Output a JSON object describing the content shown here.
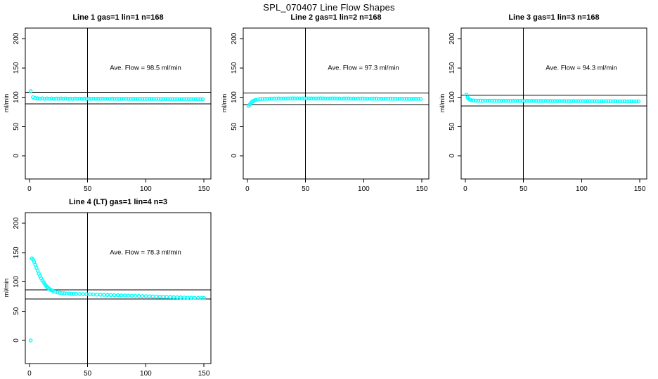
{
  "page_title": "SPL_070407  Line Flow Shapes",
  "marker_color": "#00FFFF",
  "line_color": "#000000",
  "chart_data": [
    {
      "type": "scatter",
      "title": "Line 1 gas=1 lin=1 n=168",
      "ylabel": "ml/min",
      "annotation": {
        "text": "Ave. Flow =  98.5  ml/min",
        "x": 100,
        "y": 150
      },
      "ave_flow": 98.5,
      "x_ticks": [
        0,
        50,
        100,
        150
      ],
      "y_ticks": [
        0,
        50,
        100,
        150,
        200
      ],
      "xlim": [
        -3.6,
        156
      ],
      "ylim": [
        -39.5,
        218
      ],
      "grid": false,
      "ref_h": [
        108.4,
        88.7
      ],
      "ref_v": [
        50
      ],
      "points": [
        [
          1,
          110.3
        ],
        [
          3,
          100.0
        ],
        [
          5,
          98.4
        ],
        [
          7,
          98.1
        ],
        [
          9,
          97.5
        ],
        [
          11,
          98.0
        ],
        [
          13,
          97.3
        ],
        [
          15,
          97.8
        ],
        [
          17,
          97.4
        ],
        [
          19,
          97.9
        ],
        [
          21,
          97.3
        ],
        [
          23,
          97.7
        ],
        [
          25,
          97.5
        ],
        [
          27,
          97.9
        ],
        [
          29,
          97.4
        ],
        [
          31,
          97.8
        ],
        [
          33,
          97.3
        ],
        [
          35,
          97.6
        ],
        [
          37,
          97.2
        ],
        [
          39,
          97.7
        ],
        [
          41,
          97.3
        ],
        [
          43,
          97.6
        ],
        [
          45,
          97.2
        ],
        [
          47,
          97.7
        ],
        [
          49,
          97.3
        ],
        [
          51,
          97.5
        ],
        [
          53,
          97.1
        ],
        [
          55,
          97.6
        ],
        [
          57,
          97.2
        ],
        [
          59,
          97.5
        ],
        [
          61,
          97.1
        ],
        [
          63,
          97.5
        ],
        [
          65,
          97.1
        ],
        [
          67,
          97.4
        ],
        [
          69,
          97.0
        ],
        [
          71,
          97.5
        ],
        [
          73,
          97.1
        ],
        [
          75,
          97.4
        ],
        [
          77,
          97.0
        ],
        [
          79,
          97.3
        ],
        [
          81,
          97.1
        ],
        [
          83,
          97.4
        ],
        [
          85,
          97.0
        ],
        [
          87,
          97.3
        ],
        [
          89,
          96.9
        ],
        [
          91,
          97.3
        ],
        [
          93,
          96.9
        ],
        [
          95,
          97.2
        ],
        [
          97,
          96.9
        ],
        [
          99,
          97.2
        ],
        [
          101,
          96.8
        ],
        [
          103,
          97.2
        ],
        [
          105,
          96.8
        ],
        [
          107,
          97.1
        ],
        [
          109,
          96.8
        ],
        [
          111,
          97.1
        ],
        [
          113,
          96.7
        ],
        [
          115,
          97.1
        ],
        [
          117,
          96.7
        ],
        [
          119,
          97.0
        ],
        [
          121,
          96.7
        ],
        [
          123,
          97.0
        ],
        [
          125,
          96.6
        ],
        [
          127,
          97.0
        ],
        [
          129,
          96.6
        ],
        [
          131,
          96.9
        ],
        [
          133,
          96.6
        ],
        [
          135,
          96.9
        ],
        [
          137,
          96.5
        ],
        [
          139,
          96.9
        ],
        [
          141,
          96.5
        ],
        [
          143,
          96.8
        ],
        [
          145,
          96.5
        ],
        [
          147,
          96.8
        ],
        [
          149,
          96.4
        ]
      ]
    },
    {
      "type": "scatter",
      "title": "Line 2 gas=1 lin=2 n=168",
      "ylabel": "ml/min",
      "annotation": {
        "text": "Ave. Flow =  97.3  ml/min",
        "x": 100,
        "y": 150
      },
      "ave_flow": 97.3,
      "x_ticks": [
        0,
        50,
        100,
        150
      ],
      "y_ticks": [
        0,
        50,
        100,
        150,
        200
      ],
      "xlim": [
        -3.6,
        156
      ],
      "ylim": [
        -39.5,
        218
      ],
      "grid": false,
      "ref_h": [
        107.0,
        87.6
      ],
      "ref_v": [
        50
      ],
      "points": [
        [
          1,
          85.0
        ],
        [
          2,
          87.5
        ],
        [
          3,
          90.0
        ],
        [
          4,
          92.0
        ],
        [
          5,
          93.5
        ],
        [
          6,
          94.5
        ],
        [
          7,
          95.3
        ],
        [
          9,
          96.2
        ],
        [
          11,
          96.8
        ],
        [
          13,
          97.1
        ],
        [
          15,
          97.3
        ],
        [
          17,
          97.4
        ],
        [
          19,
          97.6
        ],
        [
          21,
          97.5
        ],
        [
          23,
          97.7
        ],
        [
          25,
          97.6
        ],
        [
          27,
          97.8
        ],
        [
          29,
          97.6
        ],
        [
          31,
          97.9
        ],
        [
          33,
          97.7
        ],
        [
          35,
          97.9
        ],
        [
          37,
          97.8
        ],
        [
          39,
          98.0
        ],
        [
          41,
          97.8
        ],
        [
          43,
          98.0
        ],
        [
          45,
          97.9
        ],
        [
          47,
          98.0
        ],
        [
          49,
          97.8
        ],
        [
          51,
          98.0
        ],
        [
          53,
          97.9
        ],
        [
          55,
          98.0
        ],
        [
          57,
          97.8
        ],
        [
          59,
          97.9
        ],
        [
          61,
          97.8
        ],
        [
          63,
          98.0
        ],
        [
          65,
          97.8
        ],
        [
          67,
          97.9
        ],
        [
          69,
          97.7
        ],
        [
          71,
          97.9
        ],
        [
          73,
          97.8
        ],
        [
          75,
          97.9
        ],
        [
          77,
          97.7
        ],
        [
          79,
          97.8
        ],
        [
          81,
          97.6
        ],
        [
          83,
          97.8
        ],
        [
          85,
          97.7
        ],
        [
          87,
          97.8
        ],
        [
          89,
          97.6
        ],
        [
          91,
          97.7
        ],
        [
          93,
          97.5
        ],
        [
          95,
          97.7
        ],
        [
          97,
          97.6
        ],
        [
          99,
          97.7
        ],
        [
          101,
          97.5
        ],
        [
          103,
          97.6
        ],
        [
          105,
          97.4
        ],
        [
          107,
          97.6
        ],
        [
          109,
          97.5
        ],
        [
          111,
          97.6
        ],
        [
          113,
          97.4
        ],
        [
          115,
          97.5
        ],
        [
          117,
          97.3
        ],
        [
          119,
          97.5
        ],
        [
          121,
          97.4
        ],
        [
          123,
          97.5
        ],
        [
          125,
          97.3
        ],
        [
          127,
          97.4
        ],
        [
          129,
          97.2
        ],
        [
          131,
          97.4
        ],
        [
          133,
          97.3
        ],
        [
          135,
          97.4
        ],
        [
          137,
          97.2
        ],
        [
          139,
          97.3
        ],
        [
          141,
          97.1
        ],
        [
          143,
          97.3
        ],
        [
          145,
          97.2
        ],
        [
          147,
          97.3
        ],
        [
          149,
          97.1
        ]
      ]
    },
    {
      "type": "scatter",
      "title": "Line 3 gas=1 lin=3 n=168",
      "ylabel": "ml/min",
      "annotation": {
        "text": "Ave. Flow =  94.3  ml/min",
        "x": 100,
        "y": 150
      },
      "ave_flow": 94.3,
      "x_ticks": [
        0,
        50,
        100,
        150
      ],
      "y_ticks": [
        0,
        50,
        100,
        150,
        200
      ],
      "xlim": [
        -3.6,
        156
      ],
      "ylim": [
        -39.5,
        218
      ],
      "grid": false,
      "ref_h": [
        103.7,
        84.9
      ],
      "ref_v": [
        50
      ],
      "points": [
        [
          1,
          104.5
        ],
        [
          2,
          99.5
        ],
        [
          3,
          97.0
        ],
        [
          4,
          95.8
        ],
        [
          5,
          95.0
        ],
        [
          7,
          94.4
        ],
        [
          9,
          94.2
        ],
        [
          11,
          94.0
        ],
        [
          13,
          94.2
        ],
        [
          15,
          93.9
        ],
        [
          17,
          94.1
        ],
        [
          19,
          93.8
        ],
        [
          21,
          94.1
        ],
        [
          23,
          93.9
        ],
        [
          25,
          94.0
        ],
        [
          27,
          93.8
        ],
        [
          29,
          94.0
        ],
        [
          31,
          93.7
        ],
        [
          33,
          94.0
        ],
        [
          35,
          93.8
        ],
        [
          37,
          93.9
        ],
        [
          39,
          93.7
        ],
        [
          41,
          93.9
        ],
        [
          43,
          93.6
        ],
        [
          45,
          93.9
        ],
        [
          47,
          93.7
        ],
        [
          49,
          93.8
        ],
        [
          51,
          93.6
        ],
        [
          53,
          93.8
        ],
        [
          55,
          93.5
        ],
        [
          57,
          93.8
        ],
        [
          59,
          93.6
        ],
        [
          61,
          93.7
        ],
        [
          63,
          93.5
        ],
        [
          65,
          93.7
        ],
        [
          67,
          93.4
        ],
        [
          69,
          93.7
        ],
        [
          71,
          93.5
        ],
        [
          73,
          93.6
        ],
        [
          75,
          93.4
        ],
        [
          77,
          93.6
        ],
        [
          79,
          93.3
        ],
        [
          81,
          93.6
        ],
        [
          83,
          93.4
        ],
        [
          85,
          93.5
        ],
        [
          87,
          93.3
        ],
        [
          89,
          93.5
        ],
        [
          91,
          93.2
        ],
        [
          93,
          93.5
        ],
        [
          95,
          93.3
        ],
        [
          97,
          93.4
        ],
        [
          99,
          93.2
        ],
        [
          101,
          93.4
        ],
        [
          103,
          93.1
        ],
        [
          105,
          93.4
        ],
        [
          107,
          93.2
        ],
        [
          109,
          93.3
        ],
        [
          111,
          93.1
        ],
        [
          113,
          93.3
        ],
        [
          115,
          93.0
        ],
        [
          117,
          93.3
        ],
        [
          119,
          93.1
        ],
        [
          121,
          93.2
        ],
        [
          123,
          93.0
        ],
        [
          125,
          93.2
        ],
        [
          127,
          92.9
        ],
        [
          129,
          93.2
        ],
        [
          131,
          93.0
        ],
        [
          133,
          93.1
        ],
        [
          135,
          92.9
        ],
        [
          137,
          93.1
        ],
        [
          139,
          92.8
        ],
        [
          141,
          93.1
        ],
        [
          143,
          92.9
        ],
        [
          145,
          93.0
        ],
        [
          147,
          92.8
        ],
        [
          149,
          93.0
        ]
      ]
    },
    {
      "type": "scatter",
      "title": "Line 4 (LT) gas=1 lin=4 n=3",
      "ylabel": "ml/min",
      "annotation": {
        "text": "Ave. Flow =  78.3  ml/min",
        "x": 100,
        "y": 150
      },
      "ave_flow": 78.3,
      "x_ticks": [
        0,
        50,
        100,
        150
      ],
      "y_ticks": [
        0,
        50,
        100,
        150,
        200
      ],
      "xlim": [
        -3.6,
        156
      ],
      "ylim": [
        -39.5,
        218
      ],
      "grid": false,
      "ref_h": [
        86.1,
        70.5
      ],
      "ref_v": [
        50
      ],
      "points": [
        [
          1,
          0
        ],
        [
          2,
          140
        ],
        [
          3,
          138
        ],
        [
          4,
          134
        ],
        [
          5,
          129
        ],
        [
          6,
          124
        ],
        [
          7,
          119
        ],
        [
          8,
          114
        ],
        [
          9,
          110
        ],
        [
          10,
          106
        ],
        [
          11,
          102.5
        ],
        [
          12,
          99.5
        ],
        [
          13,
          96.5
        ],
        [
          14,
          94
        ],
        [
          15,
          91.5
        ],
        [
          16,
          89.5
        ],
        [
          17,
          88
        ],
        [
          18,
          86.5
        ],
        [
          19,
          85.5
        ],
        [
          20,
          84.5
        ],
        [
          22,
          83
        ],
        [
          24,
          82
        ],
        [
          26,
          81.3
        ],
        [
          28,
          80.8
        ],
        [
          30,
          80.4
        ],
        [
          32,
          80.1
        ],
        [
          34,
          79.9
        ],
        [
          36,
          79.7
        ],
        [
          38,
          79.5
        ],
        [
          40,
          79.4
        ],
        [
          43,
          79.2
        ],
        [
          46,
          79.0
        ],
        [
          49,
          78.8
        ],
        [
          52,
          78.6
        ],
        [
          55,
          78.4
        ],
        [
          58,
          78.2
        ],
        [
          61,
          78.0
        ],
        [
          64,
          77.8
        ],
        [
          67,
          77.6
        ],
        [
          70,
          77.4
        ],
        [
          73,
          77.2
        ],
        [
          76,
          77.0
        ],
        [
          79,
          76.8
        ],
        [
          82,
          76.6
        ],
        [
          85,
          76.4
        ],
        [
          88,
          76.2
        ],
        [
          91,
          76.0
        ],
        [
          94,
          75.8
        ],
        [
          97,
          75.6
        ],
        [
          100,
          75.4
        ],
        [
          103,
          75.2
        ],
        [
          106,
          75.0
        ],
        [
          109,
          74.8
        ],
        [
          112,
          74.6
        ],
        [
          115,
          74.4
        ],
        [
          118,
          74.2
        ],
        [
          121,
          74.0
        ],
        [
          124,
          73.8
        ],
        [
          127,
          73.6
        ],
        [
          130,
          73.4
        ],
        [
          133,
          73.2
        ],
        [
          136,
          73.0
        ],
        [
          139,
          72.9
        ],
        [
          142,
          72.7
        ],
        [
          145,
          72.5
        ],
        [
          148,
          72.4
        ],
        [
          150,
          72.3
        ]
      ]
    }
  ]
}
